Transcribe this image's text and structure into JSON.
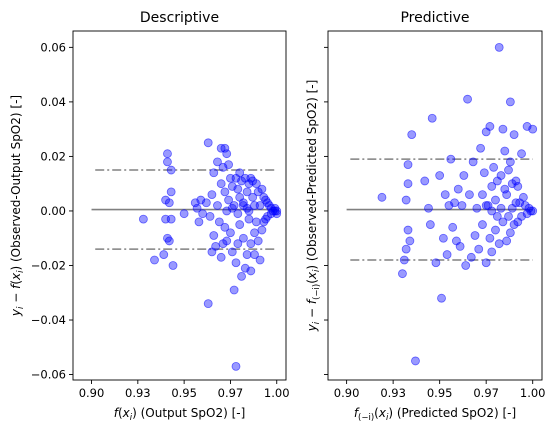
{
  "chart_data": [
    {
      "type": "scatter",
      "title": "Descriptive",
      "xlabel": "f(x_i) (Output SpO2) [-]",
      "xlabel_parts": [
        "f",
        "(",
        "x",
        "i",
        ") (Output SpO2) [-]"
      ],
      "ylabel": "y_i − f(x_i) (Observed-Output SpO2) [-]",
      "ylabel_parts": [
        "y",
        "i",
        " − ",
        "f",
        "(",
        "x",
        "i",
        ") (Observed-Output SpO2) [-]"
      ],
      "xlim": [
        0.89,
        1.005
      ],
      "ylim": [
        -0.062,
        0.066
      ],
      "xticks": [
        0.9,
        0.925,
        0.95,
        0.975,
        1.0
      ],
      "xtick_labels": [
        "0.90",
        "0.93",
        "0.95",
        "0.97",
        "1.00"
      ],
      "yticks": [
        -0.06,
        -0.04,
        -0.02,
        0.0,
        0.02,
        0.04,
        0.06
      ],
      "ytick_labels": [
        "−0.06",
        "−0.04",
        "−0.02",
        "0.00",
        "0.02",
        "0.04",
        "0.06"
      ],
      "mean_line": 0.0005,
      "limits": [
        0.015,
        -0.014
      ],
      "color_points": "#0000ff",
      "color_lines": "#808080",
      "points": [
        [
          0.928,
          -0.003
        ],
        [
          0.934,
          -0.018
        ],
        [
          0.939,
          -0.016
        ],
        [
          0.94,
          -0.003
        ],
        [
          0.94,
          0.004
        ],
        [
          0.941,
          0.021
        ],
        [
          0.941,
          0.018
        ],
        [
          0.941,
          -0.01
        ],
        [
          0.942,
          -0.011
        ],
        [
          0.942,
          0.003
        ],
        [
          0.943,
          0.007
        ],
        [
          0.943,
          0.015
        ],
        [
          0.943,
          -0.003
        ],
        [
          0.944,
          -0.02
        ],
        [
          0.95,
          -0.001
        ],
        [
          0.956,
          0.003
        ],
        [
          0.957,
          0.001
        ],
        [
          0.958,
          -0.004
        ],
        [
          0.959,
          0.004
        ],
        [
          0.96,
          -0.001
        ],
        [
          0.962,
          0.003
        ],
        [
          0.963,
          -0.034
        ],
        [
          0.963,
          0.025
        ],
        [
          0.964,
          -0.002
        ],
        [
          0.965,
          0.006
        ],
        [
          0.965,
          -0.015
        ],
        [
          0.966,
          0.014
        ],
        [
          0.966,
          -0.009
        ],
        [
          0.967,
          -0.013
        ],
        [
          0.968,
          0.018
        ],
        [
          0.968,
          0.002
        ],
        [
          0.969,
          -0.004
        ],
        [
          0.97,
          0.023
        ],
        [
          0.97,
          0.01
        ],
        [
          0.97,
          -0.017
        ],
        [
          0.971,
          -0.012
        ],
        [
          0.971,
          0.016
        ],
        [
          0.972,
          0.023
        ],
        [
          0.972,
          0.007
        ],
        [
          0.972,
          -0.006
        ],
        [
          0.973,
          0.021
        ],
        [
          0.973,
          -0.011
        ],
        [
          0.974,
          0.017
        ],
        [
          0.974,
          0.004
        ],
        [
          0.975,
          0.012
        ],
        [
          0.975,
          -0.008
        ],
        [
          0.976,
          0.009
        ],
        [
          0.976,
          -0.015
        ],
        [
          0.977,
          -0.029
        ],
        [
          0.977,
          0.002
        ],
        [
          0.978,
          -0.057
        ],
        [
          0.978,
          -0.019
        ],
        [
          0.978,
          0.012
        ],
        [
          0.979,
          0.008
        ],
        [
          0.979,
          -0.012
        ],
        [
          0.98,
          0.014
        ],
        [
          0.98,
          -0.005
        ],
        [
          0.98,
          0.005
        ],
        [
          0.981,
          -0.024
        ],
        [
          0.981,
          0.011
        ],
        [
          0.982,
          -0.01
        ],
        [
          0.982,
          0.002
        ],
        [
          0.983,
          0.012
        ],
        [
          0.983,
          -0.021
        ],
        [
          0.984,
          0.007
        ],
        [
          0.984,
          -0.016
        ],
        [
          0.984,
          0.001
        ],
        [
          0.985,
          0.01
        ],
        [
          0.985,
          -0.003
        ],
        [
          0.986,
          0.012
        ],
        [
          0.986,
          -0.012
        ],
        [
          0.986,
          -0.022
        ],
        [
          0.987,
          0.011
        ],
        [
          0.987,
          0.005
        ],
        [
          0.988,
          -0.008
        ],
        [
          0.988,
          -0.016
        ],
        [
          0.988,
          0.002
        ],
        [
          0.989,
          0.01
        ],
        [
          0.989,
          -0.004
        ],
        [
          0.99,
          0.007
        ],
        [
          0.99,
          -0.011
        ],
        [
          0.991,
          -0.018
        ],
        [
          0.991,
          0.002
        ],
        [
          0.992,
          0.008
        ],
        [
          0.992,
          -0.007
        ],
        [
          0.993,
          0.005
        ],
        [
          0.993,
          -0.004
        ],
        [
          0.994,
          0.004
        ],
        [
          0.994,
          -0.003
        ],
        [
          0.995,
          0.003
        ],
        [
          0.995,
          -0.002
        ],
        [
          0.996,
          0.002
        ],
        [
          0.997,
          0.001
        ],
        [
          0.997,
          -0.001
        ],
        [
          0.998,
          0.0
        ],
        [
          0.999,
          0.0
        ],
        [
          0.999,
          0.001
        ],
        [
          1.0,
          -0.001
        ],
        [
          1.0,
          0.0
        ],
        [
          0.973,
          0.0
        ],
        [
          0.976,
          0.001
        ],
        [
          0.979,
          -0.001
        ],
        [
          0.982,
          0.003
        ],
        [
          0.985,
          0.0
        ]
      ]
    },
    {
      "type": "scatter",
      "title": "Predictive",
      "xlabel": "f_(−i)(x_i) (Predicted SpO2) [-]",
      "xlabel_parts": [
        "f",
        "(−i)",
        "(",
        "x",
        "i",
        ") (Predicted SpO2) [-]"
      ],
      "ylabel": "y_i − f_(−i)(x_i) (Observed-Predicted SpO2) [-]",
      "ylabel_parts": [
        "y",
        "i",
        " − ",
        "f",
        "(−i)",
        "(",
        "x",
        "i",
        ") (Observed-Predicted SpO2) [-]"
      ],
      "xlim": [
        0.89,
        1.005
      ],
      "ylim": [
        -0.062,
        0.066
      ],
      "xticks": [
        0.9,
        0.925,
        0.95,
        0.975,
        1.0
      ],
      "xtick_labels": [
        "0.90",
        "0.93",
        "0.95",
        "0.97",
        "1.00"
      ],
      "yticks": [
        -0.06,
        -0.04,
        -0.02,
        0.0,
        0.02,
        0.04,
        0.06
      ],
      "ytick_labels": [],
      "mean_line": 0.0005,
      "limits": [
        0.019,
        -0.018
      ],
      "color_points": "#0000ff",
      "color_lines": "#808080",
      "points": [
        [
          0.919,
          0.005
        ],
        [
          0.93,
          -0.023
        ],
        [
          0.931,
          -0.018
        ],
        [
          0.932,
          0.004
        ],
        [
          0.932,
          -0.014
        ],
        [
          0.933,
          0.01
        ],
        [
          0.933,
          0.017
        ],
        [
          0.933,
          -0.007
        ],
        [
          0.934,
          -0.011
        ],
        [
          0.935,
          0.028
        ],
        [
          0.937,
          -0.055
        ],
        [
          0.942,
          0.011
        ],
        [
          0.944,
          0.001
        ],
        [
          0.945,
          -0.005
        ],
        [
          0.946,
          0.034
        ],
        [
          0.948,
          -0.019
        ],
        [
          0.95,
          0.013
        ],
        [
          0.951,
          -0.032
        ],
        [
          0.952,
          -0.01
        ],
        [
          0.953,
          0.006
        ],
        [
          0.954,
          -0.016
        ],
        [
          0.955,
          0.002
        ],
        [
          0.956,
          0.019
        ],
        [
          0.957,
          -0.006
        ],
        [
          0.958,
          0.003
        ],
        [
          0.959,
          -0.011
        ],
        [
          0.96,
          0.008
        ],
        [
          0.961,
          -0.013
        ],
        [
          0.962,
          0.002
        ],
        [
          0.963,
          0.013
        ],
        [
          0.964,
          -0.02
        ],
        [
          0.965,
          0.041
        ],
        [
          0.966,
          0.006
        ],
        [
          0.967,
          -0.017
        ],
        [
          0.968,
          0.018
        ],
        [
          0.969,
          -0.009
        ],
        [
          0.97,
          0.001
        ],
        [
          0.971,
          -0.014
        ],
        [
          0.972,
          0.023
        ],
        [
          0.973,
          0.006
        ],
        [
          0.973,
          -0.005
        ],
        [
          0.974,
          0.014
        ],
        [
          0.975,
          -0.019
        ],
        [
          0.975,
          0.029
        ],
        [
          0.976,
          0.002
        ],
        [
          0.977,
          -0.01
        ],
        [
          0.977,
          0.031
        ],
        [
          0.978,
          0.009
        ],
        [
          0.978,
          -0.015
        ],
        [
          0.979,
          0.016
        ],
        [
          0.98,
          0.004
        ],
        [
          0.98,
          -0.007
        ],
        [
          0.981,
          0.011
        ],
        [
          0.982,
          0.06
        ],
        [
          0.982,
          -0.012
        ],
        [
          0.983,
          0.013
        ],
        [
          0.983,
          0.001
        ],
        [
          0.984,
          -0.004
        ],
        [
          0.984,
          0.03
        ],
        [
          0.985,
          0.008
        ],
        [
          0.986,
          -0.011
        ],
        [
          0.986,
          0.006
        ],
        [
          0.987,
          0.015
        ],
        [
          0.987,
          -0.002
        ],
        [
          0.988,
          0.018
        ],
        [
          0.988,
          -0.008
        ],
        [
          0.989,
          0.01
        ],
        [
          0.989,
          0.001
        ],
        [
          0.99,
          0.028
        ],
        [
          0.99,
          -0.005
        ],
        [
          0.991,
          0.011
        ],
        [
          0.991,
          0.003
        ],
        [
          0.992,
          -0.004
        ],
        [
          0.992,
          0.009
        ],
        [
          0.993,
          0.003
        ],
        [
          0.994,
          0.021
        ],
        [
          0.994,
          -0.002
        ],
        [
          0.995,
          0.005
        ],
        [
          0.996,
          0.002
        ],
        [
          0.997,
          0.031
        ],
        [
          0.997,
          -0.001
        ],
        [
          0.998,
          0.001
        ],
        [
          0.999,
          0.0
        ],
        [
          1.0,
          0.03
        ],
        [
          1.0,
          0.0
        ],
        [
          0.988,
          0.04
        ],
        [
          0.985,
          0.022
        ],
        [
          0.981,
          -0.002
        ],
        [
          0.978,
          0.0
        ],
        [
          0.975,
          0.002
        ]
      ]
    }
  ]
}
